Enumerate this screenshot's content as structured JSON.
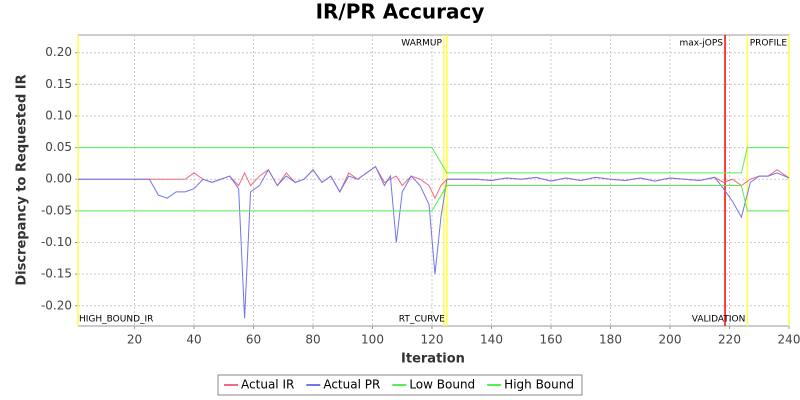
{
  "chart_data": {
    "type": "line",
    "title": "IR/PR Accuracy",
    "x_label": "Iteration",
    "y_label": "Discrepancy to Requested IR",
    "xlim": [
      1,
      240
    ],
    "ylim": [
      -0.232,
      0.228
    ],
    "xticks": [
      20,
      40,
      60,
      80,
      100,
      120,
      140,
      160,
      180,
      200,
      220,
      240
    ],
    "yticks": [
      {
        "value": -0.2,
        "label": "-0.20"
      },
      -0.15,
      {
        "value": -0.1,
        "label": "-0.10"
      },
      -0.05,
      {
        "value": 0,
        "label": "0.00"
      },
      0.05,
      {
        "value": 0.1,
        "label": "0.10"
      },
      0.15,
      {
        "value": 0.2,
        "label": "0.20"
      }
    ],
    "grid": true,
    "legend": "bottom",
    "series": [
      {
        "name": "Actual IR",
        "color": "#f06a80",
        "x": [
          1,
          25,
          28,
          31,
          34,
          37,
          40,
          43,
          46,
          49,
          52,
          55,
          57,
          59,
          62,
          65,
          68,
          71,
          74,
          77,
          80,
          83,
          86,
          89,
          92,
          95,
          98,
          101,
          104,
          106,
          108,
          110,
          113,
          116,
          119,
          121,
          123,
          125,
          130,
          135,
          140,
          145,
          150,
          155,
          160,
          165,
          170,
          175,
          180,
          185,
          190,
          195,
          200,
          205,
          210,
          215,
          218,
          221,
          224,
          227,
          230,
          233,
          236,
          240
        ],
        "values": [
          0,
          0,
          0,
          0,
          0,
          0,
          0.01,
          0,
          -0.005,
          0,
          0.005,
          -0.01,
          0.01,
          -0.01,
          0.005,
          0.015,
          -0.01,
          0.01,
          -0.005,
          0,
          0.015,
          -0.005,
          0.005,
          -0.02,
          0.01,
          0,
          0.01,
          0.02,
          -0.005,
          0,
          0.005,
          -0.01,
          0.005,
          0,
          -0.01,
          -0.03,
          -0.01,
          0,
          0,
          0,
          -0.002,
          0.002,
          0,
          0.003,
          -0.003,
          0.002,
          -0.002,
          0.003,
          0,
          -0.002,
          0.002,
          -0.003,
          0.002,
          0,
          -0.002,
          0.003,
          -0.005,
          0,
          -0.01,
          0,
          0.005,
          0.005,
          0.015,
          0.002
        ]
      },
      {
        "name": "Actual PR",
        "color": "#7474ee",
        "x": [
          1,
          25,
          28,
          31,
          34,
          37,
          40,
          43,
          46,
          49,
          52,
          55,
          57,
          59,
          62,
          65,
          68,
          71,
          74,
          77,
          80,
          83,
          86,
          89,
          92,
          95,
          98,
          101,
          104,
          106,
          108,
          110,
          113,
          116,
          119,
          121,
          123,
          125,
          130,
          135,
          140,
          145,
          150,
          155,
          160,
          165,
          170,
          175,
          180,
          185,
          190,
          195,
          200,
          205,
          210,
          215,
          218,
          221,
          224,
          227,
          230,
          233,
          236,
          240
        ],
        "values": [
          0,
          0,
          -0.025,
          -0.03,
          -0.02,
          -0.02,
          -0.015,
          0,
          -0.005,
          0,
          0.005,
          -0.015,
          -0.22,
          -0.02,
          -0.01,
          0.015,
          -0.01,
          0.005,
          -0.005,
          0,
          0.015,
          -0.005,
          0.005,
          -0.02,
          0.005,
          0,
          0.01,
          0.02,
          -0.01,
          0.005,
          -0.1,
          -0.02,
          0.005,
          -0.01,
          -0.04,
          -0.15,
          -0.06,
          0,
          0,
          0,
          -0.002,
          0.002,
          0,
          0.003,
          -0.003,
          0.002,
          -0.002,
          0.003,
          0,
          -0.002,
          0.002,
          -0.003,
          0.002,
          0,
          -0.002,
          0.003,
          -0.015,
          -0.035,
          -0.06,
          -0.005,
          0.005,
          0.005,
          0.01,
          0.002
        ]
      },
      {
        "name": "Low Bound",
        "color": "#55ee55",
        "x": [
          1,
          120,
          125,
          224,
          226,
          240
        ],
        "values": [
          -0.05,
          -0.05,
          -0.01,
          -0.01,
          -0.05,
          -0.05
        ]
      },
      {
        "name": "High Bound",
        "color": "#55ee55",
        "x": [
          1,
          120,
          125,
          224,
          226,
          240
        ],
        "values": [
          0.05,
          0.05,
          0.01,
          0.01,
          0.05,
          0.05
        ]
      }
    ],
    "markers": [
      {
        "value": 1,
        "label": "HIGH_BOUND_IR",
        "color": "#ffff44",
        "position": "bottom",
        "anchor": "start"
      },
      {
        "value": 124,
        "label": "WARMUP",
        "color": "#ffff44",
        "position": "top",
        "anchor": "end"
      },
      {
        "value": 125,
        "label": "RT_CURVE",
        "color": "#ffff44",
        "position": "bottom",
        "anchor": "end"
      },
      {
        "value": 218.5,
        "label": "max-jOPS",
        "color": "#ff0000",
        "position": "top",
        "anchor": "end"
      },
      {
        "value": 226,
        "label": "VALIDATION",
        "color": "#ffff44",
        "position": "bottom",
        "anchor": "end"
      },
      {
        "value": 240,
        "label": "PROFILE",
        "color": "#ffff44",
        "position": "top",
        "anchor": "end"
      }
    ]
  }
}
